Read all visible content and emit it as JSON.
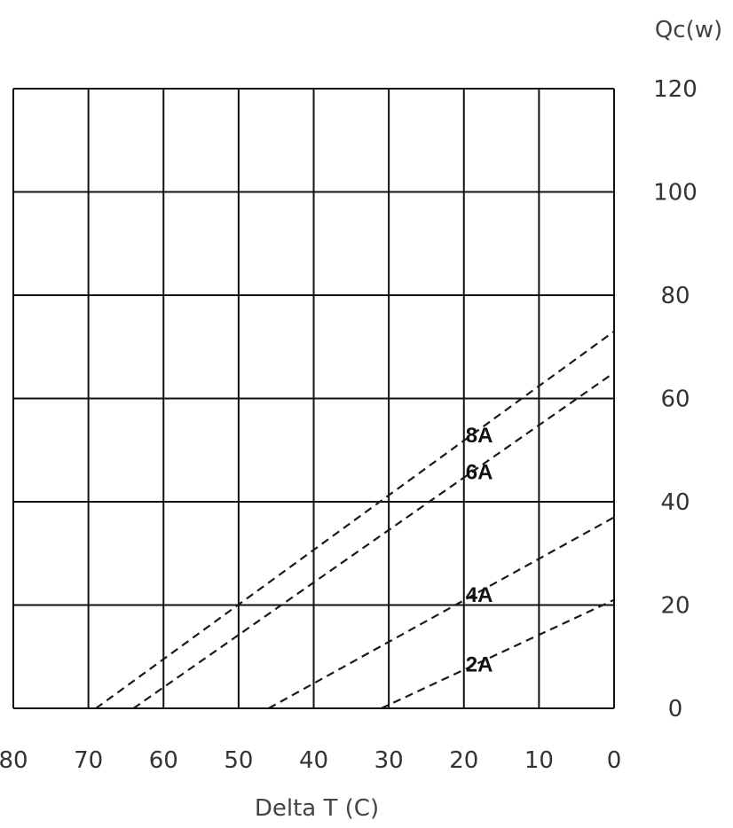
{
  "chart_data": {
    "type": "line",
    "xlabel": "Delta T (C)",
    "ylabel": "Qc(w)",
    "xlim": [
      80,
      0
    ],
    "ylim": [
      0,
      120
    ],
    "x_ticks": [
      "80",
      "70",
      "60",
      "50",
      "40",
      "30",
      "20",
      "10",
      "0"
    ],
    "y_ticks": [
      "0",
      "20",
      "40",
      "60",
      "80",
      "100",
      "120"
    ],
    "grid": true,
    "series": [
      {
        "name": "8A",
        "x": [
          69,
          0
        ],
        "y": [
          0,
          73
        ]
      },
      {
        "name": "6A",
        "x": [
          64,
          0
        ],
        "y": [
          0,
          65
        ]
      },
      {
        "name": "4A",
        "x": [
          46,
          0
        ],
        "y": [
          0,
          37
        ]
      },
      {
        "name": "2A",
        "x": [
          31,
          0
        ],
        "y": [
          0,
          21
        ]
      }
    ]
  }
}
